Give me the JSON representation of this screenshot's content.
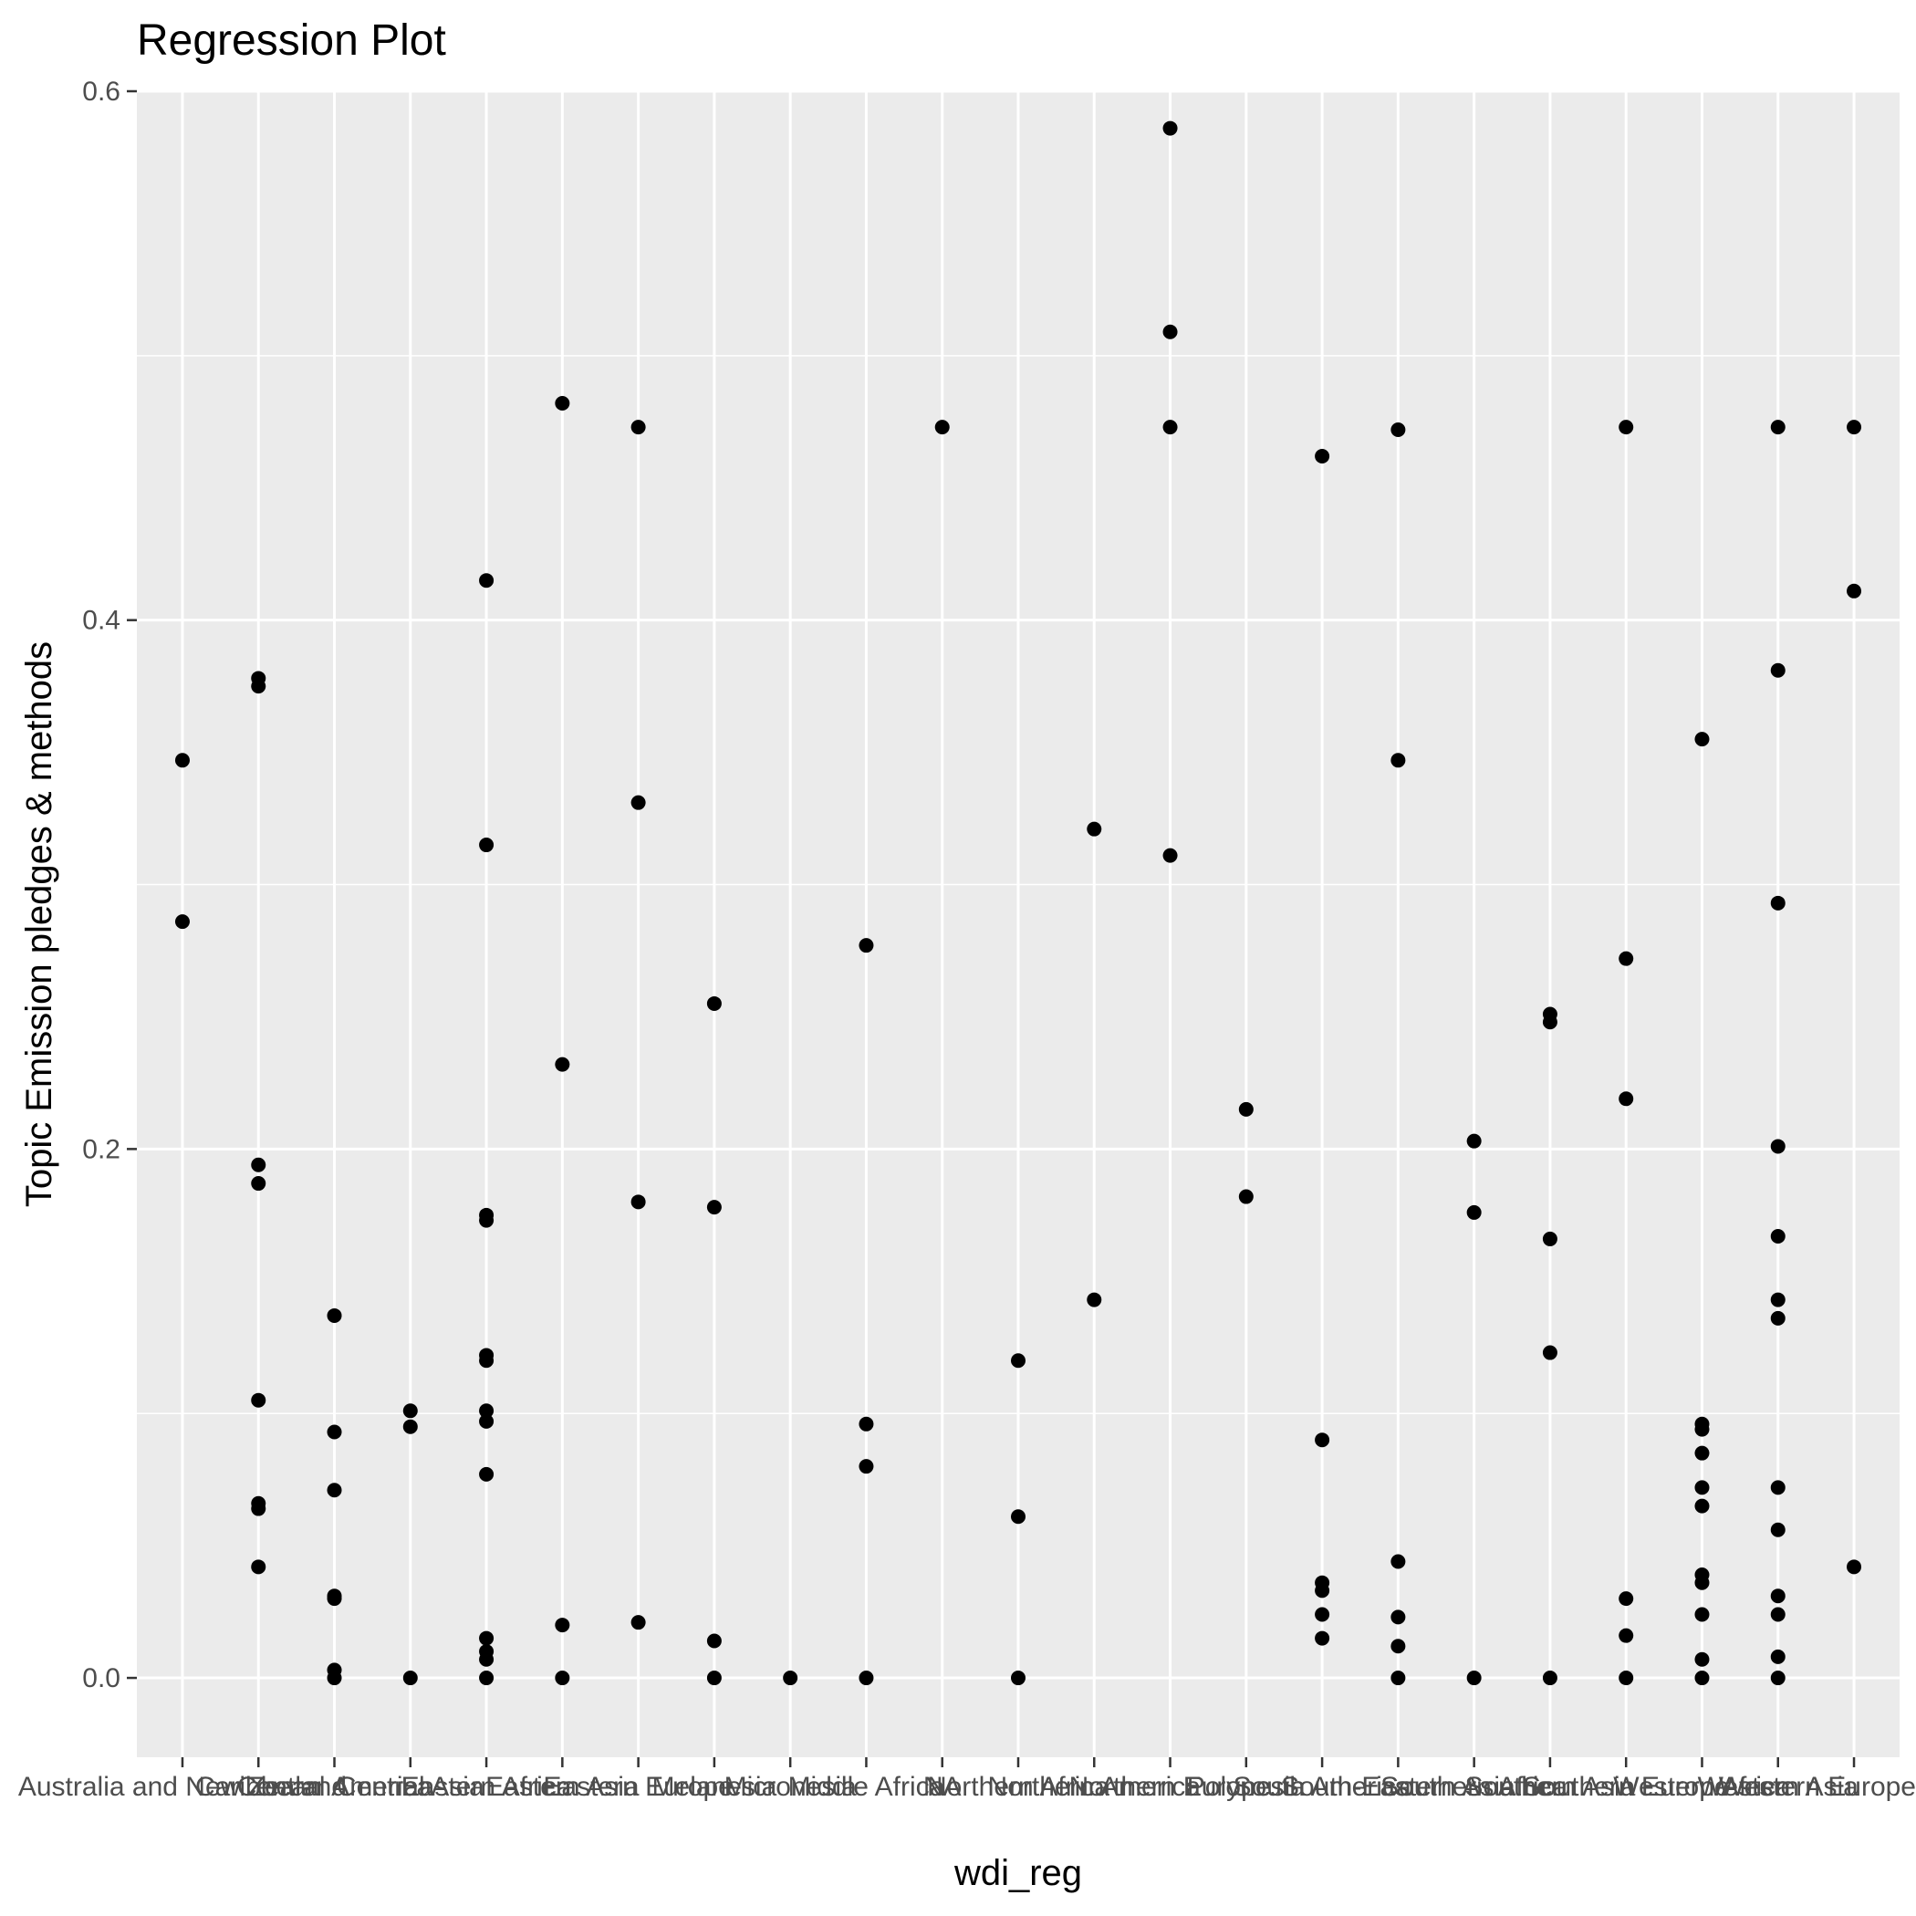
{
  "colors": {
    "panel": "#ebebeb",
    "grid_major": "#ffffff",
    "grid_minor": "#f5f5f5",
    "point": "#000000",
    "tick": "#333333",
    "tick_text": "#4d4d4d"
  },
  "chart_data": {
    "type": "scatter",
    "title": "Regression Plot",
    "xlabel": "wdi_reg",
    "ylabel": "Topic Emission pledges & methods",
    "ylim": [
      -0.03,
      0.6
    ],
    "yticks": [
      0.0,
      0.2,
      0.4,
      0.6
    ],
    "ytick_labels": [
      "0.0",
      "0.2",
      "0.4",
      "0.6"
    ],
    "grid": true,
    "categories": [
      "Australia and New Zealand",
      "Caribbean",
      "Central America",
      "Central Asia",
      "Eastern Africa",
      "Eastern Asia",
      "Eastern Europe",
      "Melanesia",
      "Micronesia",
      "Middle Africa",
      "NA",
      "Northern Africa",
      "Northern America",
      "Northern Europe",
      "Polynesia",
      "South America",
      "South-Eastern Asia",
      "Southern Africa",
      "Southern Asia",
      "Southern Europe",
      "Western Africa",
      "Western Asia",
      "Western Europe"
    ],
    "series": [
      {
        "points": [
          {
            "x": "Australia and New Zealand",
            "y": 0.347
          },
          {
            "x": "Australia and New Zealand",
            "y": 0.286
          },
          {
            "x": "Caribbean",
            "y": 0.378
          },
          {
            "x": "Caribbean",
            "y": 0.375
          },
          {
            "x": "Caribbean",
            "y": 0.194
          },
          {
            "x": "Caribbean",
            "y": 0.187
          },
          {
            "x": "Caribbean",
            "y": 0.105
          },
          {
            "x": "Caribbean",
            "y": 0.066
          },
          {
            "x": "Caribbean",
            "y": 0.064
          },
          {
            "x": "Caribbean",
            "y": 0.042
          },
          {
            "x": "Central America",
            "y": 0.137
          },
          {
            "x": "Central America",
            "y": 0.093
          },
          {
            "x": "Central America",
            "y": 0.071
          },
          {
            "x": "Central America",
            "y": 0.031
          },
          {
            "x": "Central America",
            "y": 0.03
          },
          {
            "x": "Central America",
            "y": 0.003
          },
          {
            "x": "Central America",
            "y": 0.0
          },
          {
            "x": "Central Asia",
            "y": 0.101
          },
          {
            "x": "Central Asia",
            "y": 0.095
          },
          {
            "x": "Central Asia",
            "y": 0.0
          },
          {
            "x": "Eastern Africa",
            "y": 0.415
          },
          {
            "x": "Eastern Africa",
            "y": 0.315
          },
          {
            "x": "Eastern Africa",
            "y": 0.175
          },
          {
            "x": "Eastern Africa",
            "y": 0.173
          },
          {
            "x": "Eastern Africa",
            "y": 0.122
          },
          {
            "x": "Eastern Africa",
            "y": 0.12
          },
          {
            "x": "Eastern Africa",
            "y": 0.101
          },
          {
            "x": "Eastern Africa",
            "y": 0.097
          },
          {
            "x": "Eastern Africa",
            "y": 0.077
          },
          {
            "x": "Eastern Africa",
            "y": 0.015
          },
          {
            "x": "Eastern Africa",
            "y": 0.01
          },
          {
            "x": "Eastern Africa",
            "y": 0.007
          },
          {
            "x": "Eastern Africa",
            "y": 0.0
          },
          {
            "x": "Eastern Asia",
            "y": 0.482
          },
          {
            "x": "Eastern Asia",
            "y": 0.232
          },
          {
            "x": "Eastern Asia",
            "y": 0.02
          },
          {
            "x": "Eastern Asia",
            "y": 0.0
          },
          {
            "x": "Eastern Europe",
            "y": 0.473
          },
          {
            "x": "Eastern Europe",
            "y": 0.331
          },
          {
            "x": "Eastern Europe",
            "y": 0.18
          },
          {
            "x": "Eastern Europe",
            "y": 0.021
          },
          {
            "x": "Melanesia",
            "y": 0.255
          },
          {
            "x": "Melanesia",
            "y": 0.178
          },
          {
            "x": "Melanesia",
            "y": 0.014
          },
          {
            "x": "Melanesia",
            "y": 0.0
          },
          {
            "x": "Micronesia",
            "y": 0.0
          },
          {
            "x": "Middle Africa",
            "y": 0.277
          },
          {
            "x": "Middle Africa",
            "y": 0.096
          },
          {
            "x": "Middle Africa",
            "y": 0.08
          },
          {
            "x": "Middle Africa",
            "y": 0.0
          },
          {
            "x": "NA",
            "y": 0.473
          },
          {
            "x": "Northern Africa",
            "y": 0.12
          },
          {
            "x": "Northern Africa",
            "y": 0.061
          },
          {
            "x": "Northern Africa",
            "y": 0.0
          },
          {
            "x": "Northern America",
            "y": 0.321
          },
          {
            "x": "Northern America",
            "y": 0.143
          },
          {
            "x": "Northern Europe",
            "y": 0.586
          },
          {
            "x": "Northern Europe",
            "y": 0.509
          },
          {
            "x": "Northern Europe",
            "y": 0.473
          },
          {
            "x": "Northern Europe",
            "y": 0.311
          },
          {
            "x": "Polynesia",
            "y": 0.215
          },
          {
            "x": "Polynesia",
            "y": 0.182
          },
          {
            "x": "South America",
            "y": 0.462
          },
          {
            "x": "South America",
            "y": 0.09
          },
          {
            "x": "South America",
            "y": 0.036
          },
          {
            "x": "South America",
            "y": 0.033
          },
          {
            "x": "South America",
            "y": 0.024
          },
          {
            "x": "South America",
            "y": 0.015
          },
          {
            "x": "South-Eastern Asia",
            "y": 0.472
          },
          {
            "x": "South-Eastern Asia",
            "y": 0.347
          },
          {
            "x": "South-Eastern Asia",
            "y": 0.044
          },
          {
            "x": "South-Eastern Asia",
            "y": 0.023
          },
          {
            "x": "South-Eastern Asia",
            "y": 0.012
          },
          {
            "x": "South-Eastern Asia",
            "y": 0.0
          },
          {
            "x": "Southern Africa",
            "y": 0.203
          },
          {
            "x": "Southern Africa",
            "y": 0.176
          },
          {
            "x": "Southern Africa",
            "y": 0.0
          },
          {
            "x": "Southern Asia",
            "y": 0.251
          },
          {
            "x": "Southern Asia",
            "y": 0.248
          },
          {
            "x": "Southern Asia",
            "y": 0.166
          },
          {
            "x": "Southern Asia",
            "y": 0.123
          },
          {
            "x": "Southern Asia",
            "y": 0.0
          },
          {
            "x": "Southern Europe",
            "y": 0.473
          },
          {
            "x": "Southern Europe",
            "y": 0.272
          },
          {
            "x": "Southern Europe",
            "y": 0.219
          },
          {
            "x": "Southern Europe",
            "y": 0.03
          },
          {
            "x": "Southern Europe",
            "y": 0.016
          },
          {
            "x": "Southern Europe",
            "y": 0.0
          },
          {
            "x": "Western Africa",
            "y": 0.355
          },
          {
            "x": "Western Africa",
            "y": 0.096
          },
          {
            "x": "Western Africa",
            "y": 0.094
          },
          {
            "x": "Western Africa",
            "y": 0.085
          },
          {
            "x": "Western Africa",
            "y": 0.072
          },
          {
            "x": "Western Africa",
            "y": 0.065
          },
          {
            "x": "Western Africa",
            "y": 0.039
          },
          {
            "x": "Western Africa",
            "y": 0.036
          },
          {
            "x": "Western Africa",
            "y": 0.024
          },
          {
            "x": "Western Africa",
            "y": 0.007
          },
          {
            "x": "Western Africa",
            "y": 0.0
          },
          {
            "x": "Western Asia",
            "y": 0.473
          },
          {
            "x": "Western Asia",
            "y": 0.381
          },
          {
            "x": "Western Asia",
            "y": 0.293
          },
          {
            "x": "Western Asia",
            "y": 0.201
          },
          {
            "x": "Western Asia",
            "y": 0.167
          },
          {
            "x": "Western Asia",
            "y": 0.143
          },
          {
            "x": "Western Asia",
            "y": 0.136
          },
          {
            "x": "Western Asia",
            "y": 0.072
          },
          {
            "x": "Western Asia",
            "y": 0.056
          },
          {
            "x": "Western Asia",
            "y": 0.031
          },
          {
            "x": "Western Asia",
            "y": 0.024
          },
          {
            "x": "Western Asia",
            "y": 0.008
          },
          {
            "x": "Western Asia",
            "y": 0.0
          },
          {
            "x": "Western Europe",
            "y": 0.473
          },
          {
            "x": "Western Europe",
            "y": 0.411
          },
          {
            "x": "Western Europe",
            "y": 0.042
          }
        ]
      }
    ]
  }
}
